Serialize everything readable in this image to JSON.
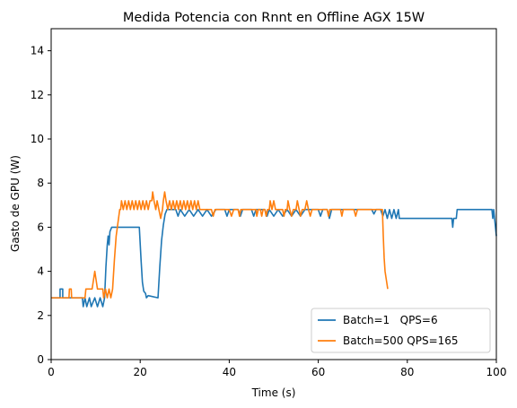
{
  "chart_data": {
    "type": "line",
    "title": "Medida Potencia con Rnnt en Offline AGX 15W",
    "xlabel": "Time (s)",
    "ylabel": "Gasto de GPU (W)",
    "xlim": [
      0,
      100
    ],
    "ylim": [
      0,
      15
    ],
    "xticks": [
      0,
      20,
      40,
      60,
      80,
      100
    ],
    "yticks": [
      0,
      2,
      4,
      6,
      8,
      10,
      12,
      14
    ],
    "grid": false,
    "legend_position": "lower-right",
    "series": [
      {
        "name": "Batch=1   QPS=6",
        "color": "#1f77b4",
        "points": [
          [
            0,
            2.8
          ],
          [
            2,
            2.8
          ],
          [
            2,
            3.2
          ],
          [
            2.6,
            3.2
          ],
          [
            2.6,
            2.8
          ],
          [
            7,
            2.8
          ],
          [
            7.2,
            2.4
          ],
          [
            7.6,
            2.8
          ],
          [
            8,
            2.4
          ],
          [
            8.6,
            2.8
          ],
          [
            9,
            2.4
          ],
          [
            9.8,
            2.8
          ],
          [
            10.4,
            2.4
          ],
          [
            11,
            2.8
          ],
          [
            11.6,
            2.4
          ],
          [
            12,
            2.8
          ],
          [
            12.3,
            4.2
          ],
          [
            12.6,
            5.2
          ],
          [
            12.8,
            5.6
          ],
          [
            13,
            5.2
          ],
          [
            13.2,
            5.8
          ],
          [
            13.6,
            6.0
          ],
          [
            19.8,
            6.0
          ],
          [
            20.2,
            4.5
          ],
          [
            20.5,
            3.5
          ],
          [
            20.8,
            3.1
          ],
          [
            21.2,
            3.0
          ],
          [
            21.4,
            2.8
          ],
          [
            21.8,
            2.9
          ],
          [
            24,
            2.8
          ],
          [
            24.4,
            4.2
          ],
          [
            24.8,
            5.4
          ],
          [
            25.2,
            6.1
          ],
          [
            25.6,
            6.6
          ],
          [
            26,
            6.8
          ],
          [
            28,
            6.8
          ],
          [
            28.5,
            6.5
          ],
          [
            29,
            6.8
          ],
          [
            30,
            6.5
          ],
          [
            31,
            6.8
          ],
          [
            32,
            6.5
          ],
          [
            33,
            6.8
          ],
          [
            34,
            6.5
          ],
          [
            35,
            6.8
          ],
          [
            36,
            6.5
          ],
          [
            37,
            6.8
          ],
          [
            39,
            6.8
          ],
          [
            39.5,
            6.5
          ],
          [
            40,
            6.8
          ],
          [
            42,
            6.8
          ],
          [
            42.5,
            6.5
          ],
          [
            43,
            6.8
          ],
          [
            45,
            6.8
          ],
          [
            45.5,
            6.5
          ],
          [
            46,
            6.8
          ],
          [
            48,
            6.8
          ],
          [
            48.5,
            6.5
          ],
          [
            49,
            6.8
          ],
          [
            50,
            6.5
          ],
          [
            51,
            6.8
          ],
          [
            52,
            6.5
          ],
          [
            53,
            6.8
          ],
          [
            54,
            6.5
          ],
          [
            55,
            6.8
          ],
          [
            56,
            6.5
          ],
          [
            57,
            6.8
          ],
          [
            60,
            6.8
          ],
          [
            60.5,
            6.5
          ],
          [
            61,
            6.8
          ],
          [
            62,
            6.8
          ],
          [
            62.5,
            6.4
          ],
          [
            63,
            6.8
          ],
          [
            72,
            6.8
          ],
          [
            72.5,
            6.6
          ],
          [
            73,
            6.8
          ],
          [
            74,
            6.8
          ],
          [
            74.5,
            6.5
          ],
          [
            75,
            6.8
          ],
          [
            75.5,
            6.4
          ],
          [
            76,
            6.8
          ],
          [
            76.5,
            6.4
          ],
          [
            77,
            6.8
          ],
          [
            77.5,
            6.4
          ],
          [
            78,
            6.8
          ],
          [
            78.2,
            6.4
          ],
          [
            90,
            6.4
          ],
          [
            90.2,
            6.0
          ],
          [
            90.4,
            6.4
          ],
          [
            91,
            6.4
          ],
          [
            91.2,
            6.8
          ],
          [
            99,
            6.8
          ],
          [
            99.2,
            6.4
          ],
          [
            99.4,
            6.8
          ],
          [
            99.6,
            6.4
          ],
          [
            100,
            5.6
          ]
        ]
      },
      {
        "name": "Batch=500 QPS=165",
        "color": "#ff7f0e",
        "points": [
          [
            0,
            2.8
          ],
          [
            4,
            2.8
          ],
          [
            4.1,
            3.2
          ],
          [
            4.5,
            3.2
          ],
          [
            4.6,
            2.8
          ],
          [
            7.6,
            2.8
          ],
          [
            7.8,
            3.2
          ],
          [
            9.2,
            3.2
          ],
          [
            9.5,
            3.6
          ],
          [
            9.8,
            4.0
          ],
          [
            10.1,
            3.6
          ],
          [
            10.4,
            3.2
          ],
          [
            11.6,
            3.2
          ],
          [
            11.8,
            2.8
          ],
          [
            12.2,
            3.2
          ],
          [
            12.6,
            2.8
          ],
          [
            13,
            3.2
          ],
          [
            13.4,
            2.8
          ],
          [
            13.8,
            3.2
          ],
          [
            14.2,
            4.5
          ],
          [
            14.6,
            5.6
          ],
          [
            15,
            6.2
          ],
          [
            15.4,
            6.8
          ],
          [
            15.6,
            6.8
          ],
          [
            15.8,
            7.2
          ],
          [
            16.2,
            6.8
          ],
          [
            16.6,
            7.2
          ],
          [
            17,
            6.8
          ],
          [
            17.4,
            7.2
          ],
          [
            17.8,
            6.8
          ],
          [
            18.2,
            7.2
          ],
          [
            18.6,
            6.8
          ],
          [
            19,
            7.2
          ],
          [
            19.4,
            6.8
          ],
          [
            19.8,
            7.2
          ],
          [
            20.2,
            6.8
          ],
          [
            20.6,
            7.2
          ],
          [
            21,
            6.8
          ],
          [
            21.4,
            7.2
          ],
          [
            21.8,
            6.8
          ],
          [
            22.2,
            7.2
          ],
          [
            22.6,
            7.2
          ],
          [
            22.8,
            7.6
          ],
          [
            23.1,
            7.2
          ],
          [
            23.5,
            6.8
          ],
          [
            23.8,
            7.2
          ],
          [
            24.2,
            6.8
          ],
          [
            24.6,
            6.4
          ],
          [
            25,
            6.8
          ],
          [
            25.2,
            7.2
          ],
          [
            25.5,
            7.6
          ],
          [
            25.8,
            7.2
          ],
          [
            26.2,
            6.8
          ],
          [
            26.6,
            7.2
          ],
          [
            27,
            6.8
          ],
          [
            27.4,
            7.2
          ],
          [
            27.8,
            6.8
          ],
          [
            28.2,
            7.2
          ],
          [
            28.6,
            6.8
          ],
          [
            29,
            7.2
          ],
          [
            29.4,
            6.8
          ],
          [
            29.8,
            7.2
          ],
          [
            30.2,
            6.8
          ],
          [
            30.6,
            7.2
          ],
          [
            31,
            6.8
          ],
          [
            31.4,
            7.2
          ],
          [
            31.8,
            6.8
          ],
          [
            32.2,
            7.2
          ],
          [
            32.6,
            6.8
          ],
          [
            33,
            7.2
          ],
          [
            33.4,
            6.8
          ],
          [
            36,
            6.8
          ],
          [
            36.4,
            6.5
          ],
          [
            36.8,
            6.8
          ],
          [
            40,
            6.8
          ],
          [
            40.5,
            6.5
          ],
          [
            41,
            6.8
          ],
          [
            42,
            6.8
          ],
          [
            42.3,
            6.5
          ],
          [
            42.6,
            6.8
          ],
          [
            46,
            6.8
          ],
          [
            46.2,
            6.5
          ],
          [
            46.5,
            6.8
          ],
          [
            47,
            6.8
          ],
          [
            47.3,
            6.5
          ],
          [
            47.6,
            6.8
          ],
          [
            48,
            6.8
          ],
          [
            48.3,
            6.5
          ],
          [
            48.6,
            6.8
          ],
          [
            49,
            6.8
          ],
          [
            49.2,
            7.2
          ],
          [
            49.6,
            6.8
          ],
          [
            50,
            7.2
          ],
          [
            50.4,
            6.8
          ],
          [
            52,
            6.8
          ],
          [
            52.3,
            6.5
          ],
          [
            52.6,
            6.8
          ],
          [
            53,
            6.8
          ],
          [
            53.2,
            7.2
          ],
          [
            53.6,
            6.8
          ],
          [
            54,
            6.5
          ],
          [
            54.4,
            6.8
          ],
          [
            55,
            6.8
          ],
          [
            55.3,
            7.2
          ],
          [
            55.7,
            6.8
          ],
          [
            56,
            6.5
          ],
          [
            56.4,
            6.8
          ],
          [
            57,
            6.8
          ],
          [
            57.4,
            7.2
          ],
          [
            57.8,
            6.8
          ],
          [
            58.2,
            6.5
          ],
          [
            58.6,
            6.8
          ],
          [
            62,
            6.8
          ],
          [
            62.3,
            6.5
          ],
          [
            62.6,
            6.8
          ],
          [
            65,
            6.8
          ],
          [
            65.3,
            6.5
          ],
          [
            65.6,
            6.8
          ],
          [
            68,
            6.8
          ],
          [
            68.4,
            6.5
          ],
          [
            68.8,
            6.8
          ],
          [
            74.4,
            6.8
          ],
          [
            74.6,
            5.6
          ],
          [
            74.8,
            4.6
          ],
          [
            75,
            4.0
          ],
          [
            75.3,
            3.6
          ],
          [
            75.6,
            3.2
          ]
        ]
      }
    ]
  }
}
